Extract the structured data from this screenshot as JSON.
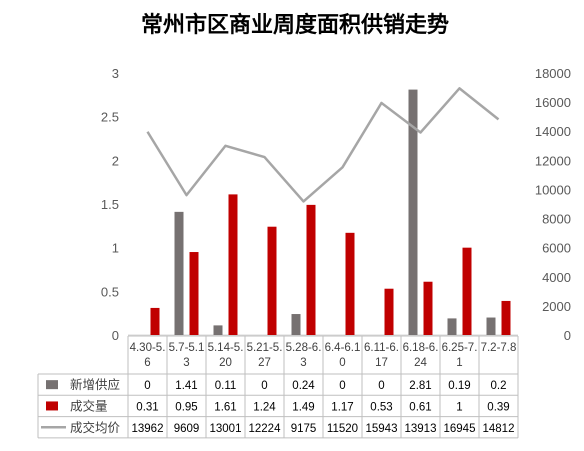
{
  "chart_data": {
    "type": "bar",
    "title": "常州市区商业周度面积供销走势",
    "categories": [
      [
        "4.30-5.",
        "6"
      ],
      [
        "5.7-5.1",
        "3"
      ],
      [
        "5.14-5.",
        "20"
      ],
      [
        "5.21-5.",
        "27"
      ],
      [
        "5.28-6.",
        "3"
      ],
      [
        "6.4-6.1",
        "0"
      ],
      [
        "6.11-6.",
        "17"
      ],
      [
        "6.18-6.",
        "24"
      ],
      [
        "6.25-7.",
        "1"
      ],
      [
        "7.2-7.8",
        ""
      ]
    ],
    "series": [
      {
        "name": "新增供应",
        "type": "bar",
        "axis": "left",
        "color": "#767171",
        "values": [
          0,
          1.41,
          0.11,
          0,
          0.24,
          0,
          0,
          2.81,
          0.19,
          0.2
        ],
        "labels": [
          "0",
          "1.41",
          "0.11",
          "0",
          "0.24",
          "0",
          "0",
          "2.81",
          "0.19",
          "0.2"
        ]
      },
      {
        "name": "成交量",
        "type": "bar",
        "axis": "left",
        "color": "#c00000",
        "values": [
          0.31,
          0.95,
          1.61,
          1.24,
          1.49,
          1.17,
          0.53,
          0.61,
          1,
          0.39
        ],
        "labels": [
          "0.31",
          "0.95",
          "1.61",
          "1.24",
          "1.49",
          "1.17",
          "0.53",
          "0.61",
          "1",
          "0.39"
        ]
      },
      {
        "name": "成交均价",
        "type": "line",
        "axis": "right",
        "color": "#a6a6a6",
        "values": [
          13962,
          9609,
          13001,
          12224,
          9175,
          11520,
          15943,
          13913,
          16945,
          14812
        ],
        "labels": [
          "13962",
          "9609",
          "13001",
          "12224",
          "9175",
          "11520",
          "15943",
          "13913",
          "16945",
          "14812"
        ]
      }
    ],
    "y_left": {
      "range": [
        0,
        3
      ],
      "ticks": [
        "0",
        "0.5",
        "1",
        "1.5",
        "2",
        "2.5",
        "3"
      ]
    },
    "y_right": {
      "range": [
        0,
        18000
      ],
      "ticks": [
        "0",
        "2000",
        "4000",
        "6000",
        "8000",
        "10000",
        "12000",
        "14000",
        "16000",
        "18000"
      ]
    },
    "grid": false,
    "legend": "data-table"
  }
}
